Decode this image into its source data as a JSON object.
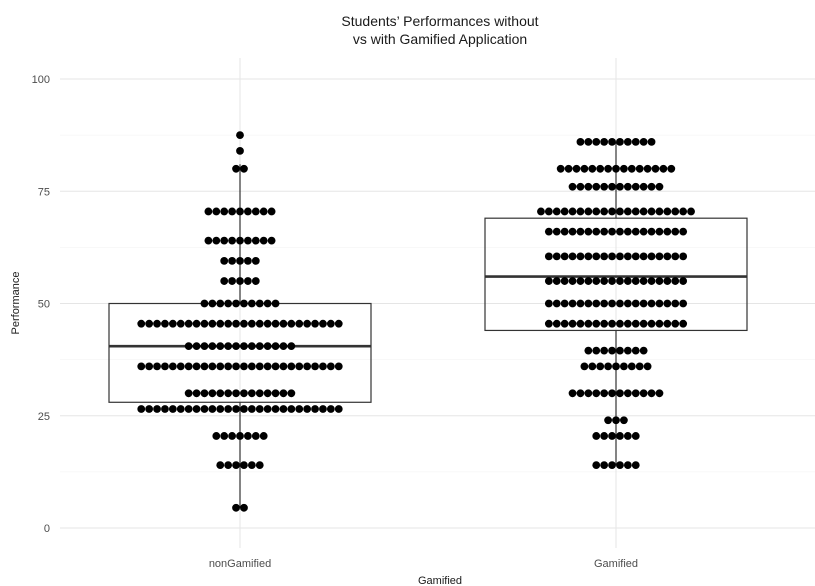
{
  "chart_data": {
    "type": "box+dotplot",
    "title": [
      "Students’ Performances without",
      "vs with Gamified Application"
    ],
    "xlabel": "Gamified",
    "ylabel": "Performance",
    "categories": [
      "nonGamified",
      "Gamified"
    ],
    "ylim": [
      0,
      100
    ],
    "yticks": [
      0,
      25,
      50,
      75,
      100
    ],
    "grid": true,
    "boxes": [
      {
        "category": "nonGamified",
        "q1": 28,
        "median": 40.5,
        "q3": 50,
        "whisker_low": 4.5,
        "whisker_high": 81
      },
      {
        "category": "Gamified",
        "q1": 44,
        "median": 56,
        "q3": 69,
        "whisker_low": 14,
        "whisker_high": 86
      }
    ],
    "dots": [
      {
        "category": "nonGamified",
        "bins": [
          {
            "y": 4.5,
            "count": 2
          },
          {
            "y": 14,
            "count": 6
          },
          {
            "y": 20.5,
            "count": 7
          },
          {
            "y": 26.5,
            "count": 26
          },
          {
            "y": 30,
            "count": 14
          },
          {
            "y": 36,
            "count": 26
          },
          {
            "y": 40.5,
            "count": 14
          },
          {
            "y": 45.5,
            "count": 26
          },
          {
            "y": 50,
            "count": 10
          },
          {
            "y": 55,
            "count": 5
          },
          {
            "y": 59.5,
            "count": 5
          },
          {
            "y": 64,
            "count": 9
          },
          {
            "y": 70.5,
            "count": 9
          },
          {
            "y": 80,
            "count": 2
          },
          {
            "y": 84,
            "count": 1
          },
          {
            "y": 87.5,
            "count": 1
          }
        ]
      },
      {
        "category": "Gamified",
        "bins": [
          {
            "y": 14,
            "count": 6
          },
          {
            "y": 20.5,
            "count": 6
          },
          {
            "y": 24,
            "count": 3
          },
          {
            "y": 30,
            "count": 12
          },
          {
            "y": 36,
            "count": 9
          },
          {
            "y": 39.5,
            "count": 8
          },
          {
            "y": 45.5,
            "count": 18
          },
          {
            "y": 50,
            "count": 18
          },
          {
            "y": 55,
            "count": 18
          },
          {
            "y": 60.5,
            "count": 18
          },
          {
            "y": 66,
            "count": 18
          },
          {
            "y": 70.5,
            "count": 20
          },
          {
            "y": 76,
            "count": 12
          },
          {
            "y": 80,
            "count": 15
          },
          {
            "y": 86,
            "count": 10
          }
        ]
      }
    ]
  }
}
